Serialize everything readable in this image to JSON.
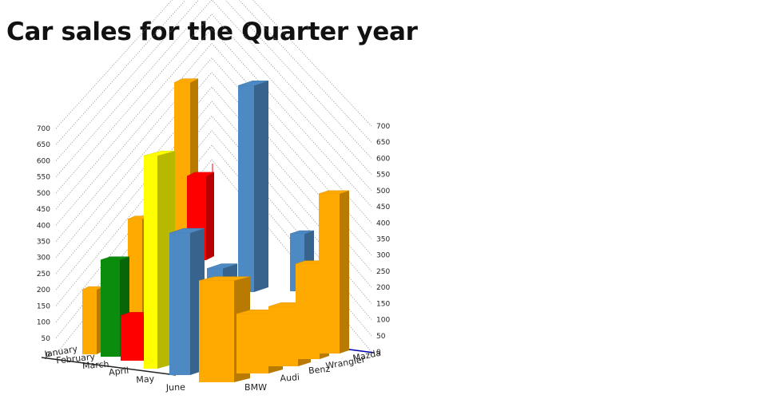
{
  "title": "Car sales for the Quarter year",
  "chart_data": {
    "type": "bar",
    "subtype": "3d-column",
    "title": "Car sales for the Quarter year",
    "months": [
      "January",
      "February",
      "March",
      "April",
      "May",
      "June"
    ],
    "brands": [
      "BMW",
      "Audi",
      "Benz",
      "Wrangler",
      "Mazda"
    ],
    "ylim": [
      0,
      700
    ],
    "yticks": [
      0,
      50,
      100,
      150,
      200,
      250,
      300,
      350,
      400,
      450,
      500,
      550,
      600,
      650,
      700
    ],
    "grid": true,
    "legend": "none",
    "series": [
      {
        "values": [
          200,
          0,
          0,
          0,
          0,
          0
        ]
      },
      {
        "values": [
          0,
          300,
          0,
          0,
          0,
          0
        ]
      },
      {
        "values": [
          0,
          300,
          200,
          0,
          0,
          0
        ]
      },
      {
        "values": [
          0,
          0,
          200,
          550,
          0,
          0
        ]
      },
      {
        "values": [
          0,
          0,
          0,
          660,
          500,
          0
        ]
      },
      {
        "values": [
          0,
          0,
          0,
          0,
          440,
          320
        ]
      },
      {
        "values": [
          0,
          0,
          0,
          0,
          550,
          200
        ]
      },
      {
        "values": [
          0,
          0,
          0,
          0,
          0,
          640
        ]
      },
      {
        "values": [
          0,
          0,
          0,
          0,
          400,
          200
        ]
      },
      {
        "values": [
          0,
          0,
          0,
          0,
          0,
          300
        ]
      },
      {
        "values": [
          0,
          0,
          0,
          0,
          0,
          500
        ]
      }
    ],
    "colors": {
      "orange": "#ffaa00",
      "green": "#0c8c0c",
      "red": "#ff0000",
      "yellow": "#ffff00",
      "blue": "#4d89c2",
      "axis": "#0000aa",
      "gridline": "#888888"
    }
  }
}
